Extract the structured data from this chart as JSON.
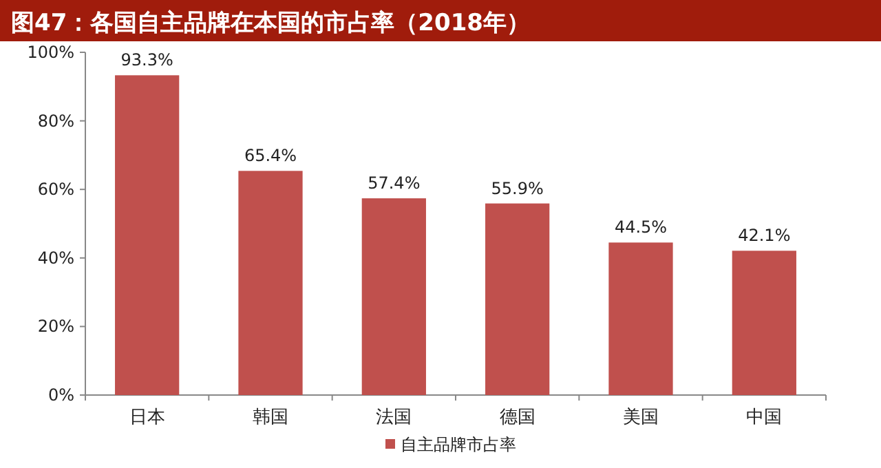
{
  "chart_data": {
    "type": "bar",
    "title": "图47：各国自主品牌在本国的市占率（2018年）",
    "categories": [
      "日本",
      "韩国",
      "法国",
      "德国",
      "美国",
      "中国"
    ],
    "series": [
      {
        "name": "自主品牌市占率",
        "color": "#c0504d",
        "values": [
          93.3,
          65.4,
          57.4,
          55.9,
          44.5,
          42.1
        ],
        "value_labels": [
          "93.3%",
          "65.4%",
          "57.4%",
          "55.9%",
          "44.5%",
          "42.1%"
        ]
      }
    ],
    "ylim": [
      0,
      100
    ],
    "yticks": [
      {
        "value": 0,
        "label": "0%"
      },
      {
        "value": 20,
        "label": "20%"
      },
      {
        "value": 40,
        "label": "40%"
      },
      {
        "value": 60,
        "label": "60%"
      },
      {
        "value": 80,
        "label": "80%"
      },
      {
        "value": 100,
        "label": "100%"
      }
    ],
    "legend": "bottom"
  }
}
